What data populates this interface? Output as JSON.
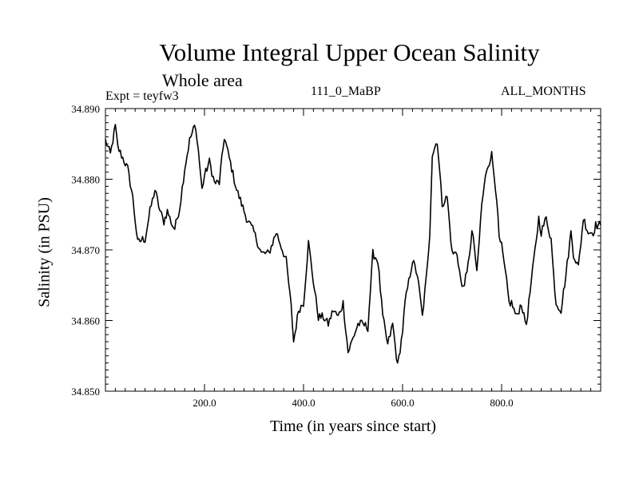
{
  "chart_data": {
    "type": "line",
    "title": "Volume Integral Upper Ocean Salinity",
    "subtitle": "Whole area",
    "experiment": "Expt = teyfw3",
    "run_id": "111_0_MaBP",
    "months": "ALL_MONTHS",
    "xlabel": "Time (in years since start)",
    "ylabel": "Salinity (in PSU)",
    "xlim": [
      0,
      1000
    ],
    "ylim": [
      34.85,
      34.89
    ],
    "xticks": [
      200,
      400,
      600,
      800
    ],
    "xtick_labels": [
      "200.0",
      "400.0",
      "600.0",
      "800.0"
    ],
    "yticks": [
      34.85,
      34.86,
      34.87,
      34.88,
      34.89
    ],
    "ytick_labels": [
      "34.850",
      "34.860",
      "34.870",
      "34.880",
      "34.890"
    ],
    "grid": false,
    "series": [
      {
        "name": "salinity",
        "color": "#000000",
        "x": [
          0,
          10,
          20,
          25,
          35,
          45,
          55,
          65,
          75,
          80,
          90,
          100,
          110,
          118,
          125,
          135,
          140,
          150,
          160,
          170,
          180,
          185,
          195,
          200,
          210,
          220,
          230,
          240,
          245,
          255,
          265,
          275,
          285,
          300,
          315,
          330,
          345,
          355,
          365,
          375,
          380,
          390,
          400,
          410,
          420,
          430,
          440,
          450,
          460,
          470,
          480,
          490,
          500,
          510,
          520,
          530,
          540,
          550,
          560,
          570,
          580,
          590,
          600,
          605,
          610,
          620,
          630,
          640,
          650,
          655,
          660,
          670,
          680,
          690,
          695,
          700,
          710,
          720,
          730,
          740,
          745,
          750,
          760,
          770,
          780,
          790,
          795,
          800,
          810,
          815,
          820,
          830,
          840,
          845,
          850,
          860,
          870,
          875,
          880,
          890,
          900,
          905,
          910,
          920,
          930,
          940,
          945,
          955,
          965,
          975,
          985,
          990,
          1000
        ],
        "values": [
          34.8855,
          34.8835,
          34.8875,
          34.8845,
          34.883,
          34.8815,
          34.8775,
          34.871,
          34.8715,
          34.8715,
          34.8755,
          34.8785,
          34.8755,
          34.874,
          34.8755,
          34.8735,
          34.873,
          34.876,
          34.8815,
          34.8855,
          34.8875,
          34.886,
          34.8785,
          34.8805,
          34.8825,
          34.8795,
          34.8795,
          34.886,
          34.8845,
          34.8815,
          34.8785,
          34.8765,
          34.8745,
          34.8725,
          34.8695,
          34.8695,
          34.8725,
          34.8705,
          34.8685,
          34.862,
          34.857,
          34.8615,
          34.8625,
          34.871,
          34.8655,
          34.8605,
          34.8605,
          34.8595,
          34.8615,
          34.8605,
          34.8625,
          34.8555,
          34.8575,
          34.8595,
          34.8595,
          34.859,
          34.8695,
          34.8685,
          34.8605,
          34.8565,
          34.8595,
          34.8535,
          34.8585,
          34.8625,
          34.8645,
          34.8685,
          34.8665,
          34.8605,
          34.8675,
          34.8725,
          34.8835,
          34.8855,
          34.8765,
          34.8775,
          34.8735,
          34.8695,
          34.8695,
          34.8645,
          34.8665,
          34.8725,
          34.8705,
          34.8665,
          34.8765,
          34.8815,
          34.8835,
          34.8775,
          34.8715,
          34.8705,
          34.8655,
          34.8625,
          34.8625,
          34.8605,
          34.8625,
          34.8605,
          34.8595,
          34.8655,
          34.8715,
          34.8745,
          34.8725,
          34.8745,
          34.8715,
          34.8665,
          34.8625,
          34.8615,
          34.8665,
          34.8725,
          34.8695,
          34.8675,
          34.8745,
          34.8725,
          34.8725,
          34.8735,
          34.8735
        ]
      }
    ]
  }
}
